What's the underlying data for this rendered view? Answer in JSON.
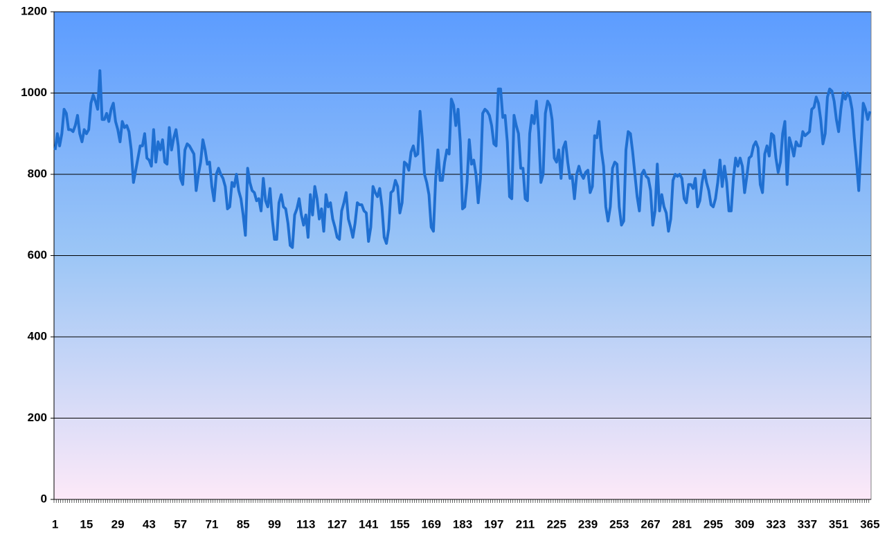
{
  "chart_data": {
    "type": "line",
    "categories": [
      "1",
      null,
      null,
      null,
      null,
      null,
      null,
      null,
      null,
      null,
      null,
      null,
      null,
      null,
      "15",
      null,
      null,
      null,
      null,
      null,
      null,
      null,
      null,
      null,
      null,
      null,
      null,
      null,
      "29",
      null,
      null,
      null,
      null,
      null,
      null,
      null,
      null,
      null,
      null,
      null,
      null,
      null,
      "43",
      null,
      null,
      null,
      null,
      null,
      null,
      null,
      null,
      null,
      null,
      null,
      null,
      null,
      "57",
      null,
      null,
      null,
      null,
      null,
      null,
      null,
      null,
      null,
      null,
      null,
      null,
      null,
      "71",
      null,
      null,
      null,
      null,
      null,
      null,
      null,
      null,
      null,
      null,
      null,
      null,
      null,
      "85",
      null,
      null,
      null,
      null,
      null,
      null,
      null,
      null,
      null,
      null,
      null,
      null,
      null,
      "99",
      null,
      null,
      null,
      null,
      null,
      null,
      null,
      null,
      null,
      null,
      null,
      null,
      null,
      "113",
      null,
      null,
      null,
      null,
      null,
      null,
      null,
      null,
      null,
      null,
      null,
      null,
      null,
      "127",
      null,
      null,
      null,
      null,
      null,
      null,
      null,
      null,
      null,
      null,
      null,
      null,
      null,
      "141",
      null,
      null,
      null,
      null,
      null,
      null,
      null,
      null,
      null,
      null,
      null,
      null,
      null,
      "155",
      null,
      null,
      null,
      null,
      null,
      null,
      null,
      null,
      null,
      null,
      null,
      null,
      null,
      "169",
      null,
      null,
      null,
      null,
      null,
      null,
      null,
      null,
      null,
      null,
      null,
      null,
      null,
      "183",
      null,
      null,
      null,
      null,
      null,
      null,
      null,
      null,
      null,
      null,
      null,
      null,
      null,
      "197",
      null,
      null,
      null,
      null,
      null,
      null,
      null,
      null,
      null,
      null,
      null,
      null,
      null,
      "211",
      null,
      null,
      null,
      null,
      null,
      null,
      null,
      null,
      null,
      null,
      null,
      null,
      null,
      "225",
      null,
      null,
      null,
      null,
      null,
      null,
      null,
      null,
      null,
      null,
      null,
      null,
      null,
      "239",
      null,
      null,
      null,
      null,
      null,
      null,
      null,
      null,
      null,
      null,
      null,
      null,
      null,
      "253",
      null,
      null,
      null,
      null,
      null,
      null,
      null,
      null,
      null,
      null,
      null,
      null,
      null,
      "267",
      null,
      null,
      null,
      null,
      null,
      null,
      null,
      null,
      null,
      null,
      null,
      null,
      null,
      "281",
      null,
      null,
      null,
      null,
      null,
      null,
      null,
      null,
      null,
      null,
      null,
      null,
      null,
      "295",
      null,
      null,
      null,
      null,
      null,
      null,
      null,
      null,
      null,
      null,
      null,
      null,
      null,
      "309",
      null,
      null,
      null,
      null,
      null,
      null,
      null,
      null,
      null,
      null,
      null,
      null,
      null,
      "323",
      null,
      null,
      null,
      null,
      null,
      null,
      null,
      null,
      null,
      null,
      null,
      null,
      null,
      "337",
      null,
      null,
      null,
      null,
      null,
      null,
      null,
      null,
      null,
      null,
      null,
      null,
      null,
      "351",
      null,
      null,
      null,
      null,
      null,
      null,
      null,
      null,
      null,
      null,
      null,
      null,
      null,
      "365"
    ],
    "values": [
      860,
      900,
      870,
      900,
      960,
      950,
      910,
      910,
      905,
      920,
      945,
      900,
      880,
      910,
      900,
      910,
      975,
      995,
      980,
      960,
      1055,
      935,
      935,
      950,
      930,
      960,
      975,
      930,
      910,
      880,
      930,
      915,
      920,
      905,
      860,
      780,
      810,
      840,
      870,
      870,
      900,
      840,
      835,
      820,
      910,
      830,
      880,
      860,
      885,
      830,
      825,
      915,
      860,
      890,
      910,
      870,
      790,
      775,
      860,
      875,
      870,
      860,
      850,
      760,
      800,
      830,
      885,
      860,
      825,
      830,
      770,
      735,
      800,
      815,
      800,
      790,
      770,
      715,
      720,
      780,
      770,
      800,
      760,
      740,
      700,
      650,
      815,
      780,
      760,
      755,
      735,
      740,
      710,
      790,
      735,
      720,
      765,
      690,
      640,
      640,
      730,
      750,
      720,
      715,
      680,
      625,
      620,
      700,
      715,
      740,
      700,
      675,
      700,
      645,
      750,
      700,
      770,
      740,
      690,
      715,
      660,
      750,
      720,
      730,
      690,
      670,
      645,
      640,
      710,
      730,
      755,
      690,
      670,
      645,
      680,
      730,
      725,
      725,
      710,
      705,
      635,
      670,
      770,
      755,
      745,
      765,
      720,
      645,
      630,
      665,
      755,
      760,
      785,
      770,
      705,
      730,
      830,
      825,
      810,
      855,
      870,
      845,
      850,
      955,
      890,
      800,
      780,
      750,
      670,
      660,
      790,
      860,
      785,
      785,
      830,
      860,
      850,
      985,
      970,
      920,
      960,
      880,
      715,
      720,
      780,
      885,
      825,
      835,
      800,
      730,
      790,
      950,
      960,
      955,
      945,
      920,
      875,
      870,
      1010,
      1010,
      940,
      945,
      880,
      745,
      740,
      945,
      920,
      900,
      815,
      815,
      740,
      735,
      900,
      945,
      925,
      980,
      905,
      780,
      800,
      950,
      980,
      970,
      935,
      840,
      830,
      860,
      790,
      865,
      880,
      830,
      790,
      795,
      740,
      800,
      820,
      800,
      790,
      805,
      810,
      755,
      770,
      895,
      890,
      930,
      860,
      820,
      720,
      685,
      720,
      815,
      830,
      825,
      720,
      675,
      685,
      860,
      905,
      900,
      855,
      800,
      745,
      710,
      800,
      810,
      795,
      790,
      760,
      675,
      710,
      825,
      710,
      750,
      720,
      705,
      660,
      690,
      785,
      800,
      795,
      800,
      790,
      740,
      730,
      775,
      775,
      765,
      790,
      720,
      735,
      780,
      810,
      780,
      760,
      725,
      720,
      740,
      780,
      835,
      770,
      820,
      780,
      710,
      710,
      790,
      840,
      820,
      840,
      820,
      755,
      795,
      840,
      845,
      870,
      880,
      865,
      775,
      755,
      850,
      870,
      845,
      900,
      895,
      840,
      805,
      830,
      900,
      930,
      775,
      890,
      870,
      845,
      880,
      870,
      870,
      905,
      895,
      900,
      905,
      960,
      965,
      990,
      975,
      935,
      875,
      900,
      990,
      1010,
      1005,
      980,
      935,
      905,
      960,
      1000,
      985,
      1000,
      990,
      960,
      890,
      830,
      760,
      870,
      975,
      960,
      935,
      955
    ],
    "color": "#1f6fd1",
    "ylim": [
      0,
      1200
    ],
    "yticks": [
      0,
      200,
      400,
      600,
      800,
      1000,
      1200
    ],
    "grid": true
  }
}
